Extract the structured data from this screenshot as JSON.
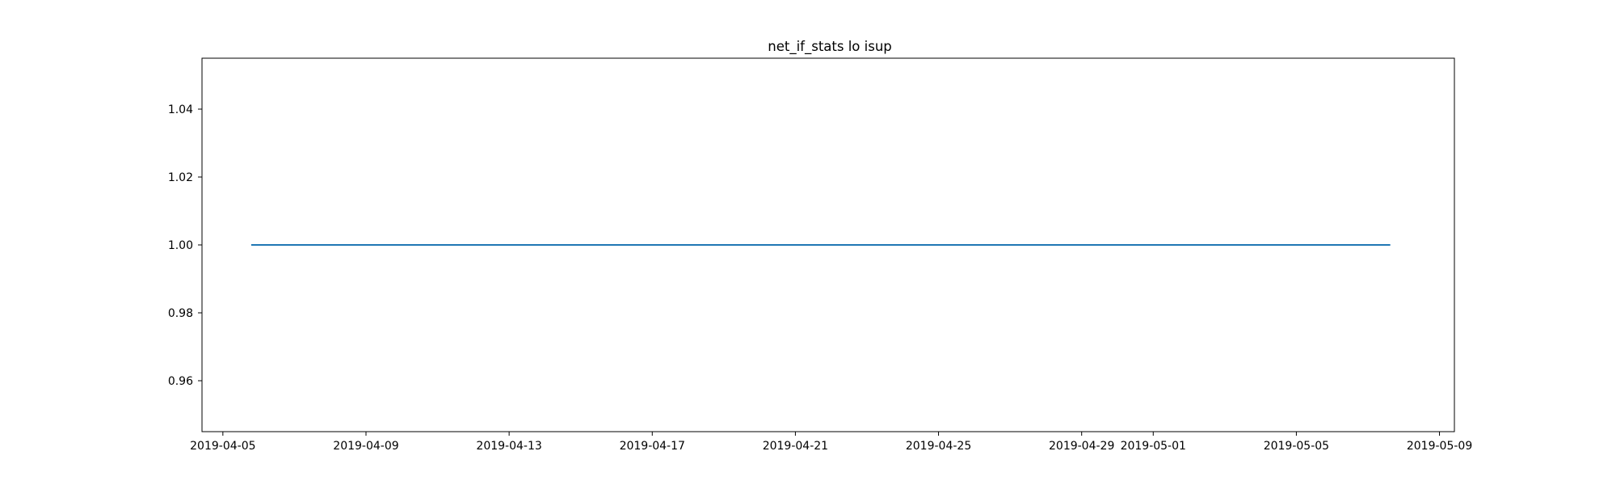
{
  "chart_data": {
    "type": "line",
    "title": "net_if_stats lo isup",
    "xlabel": "",
    "ylabel": "",
    "x_axis_type": "date",
    "xlim": [
      "2019-04-04T10:00",
      "2019-05-09T10:00"
    ],
    "ylim": [
      0.945,
      1.055
    ],
    "grid": false,
    "x_ticks": [
      "2019-04-05",
      "2019-04-09",
      "2019-04-13",
      "2019-04-17",
      "2019-04-21",
      "2019-04-25",
      "2019-04-29",
      "2019-05-01",
      "2019-05-05",
      "2019-05-09"
    ],
    "y_ticks": [
      "0.96",
      "0.98",
      "1.00",
      "1.02",
      "1.04"
    ],
    "series": [
      {
        "color": "#1f77b4",
        "points": [
          {
            "x": "2019-04-05T19:00",
            "y": 1.0
          },
          {
            "x": "2019-05-07T15:00",
            "y": 1.0
          }
        ]
      }
    ]
  }
}
